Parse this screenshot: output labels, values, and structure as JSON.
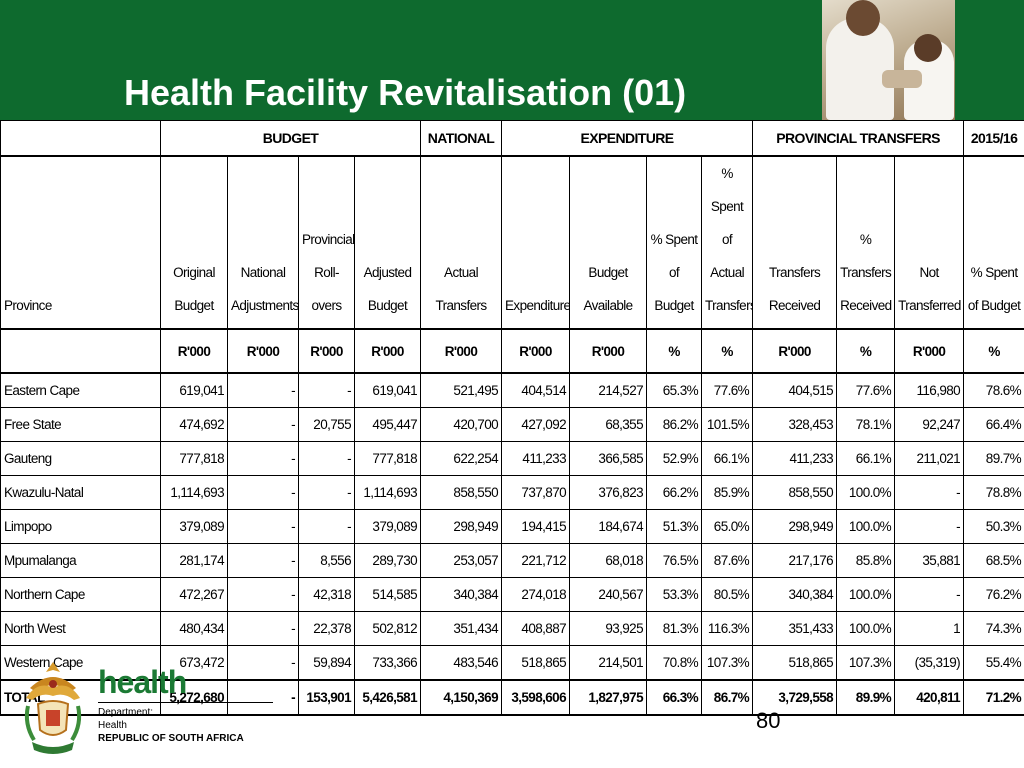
{
  "title": "Health Facility Revitalisation (01)",
  "colors": {
    "header_bg": "#0e6a2e",
    "brand_green": "#1b7a34"
  },
  "table": {
    "group_headers": [
      "BUDGET",
      "NATIONAL",
      "EXPENDITURE",
      "PROVINCIAL TRANSFERS",
      "2015/16"
    ],
    "columns": [
      {
        "label": "Province",
        "unit": ""
      },
      {
        "label": "Original Budget",
        "unit": "R'000"
      },
      {
        "label": "National Adjustments",
        "unit": "R'000"
      },
      {
        "label": "Provincial Roll-overs",
        "unit": "R'000"
      },
      {
        "label": "Adjusted Budget",
        "unit": "R'000"
      },
      {
        "label": "Actual Transfers",
        "unit": "R'000"
      },
      {
        "label": "Expenditure",
        "unit": "R'000"
      },
      {
        "label": "Budget Available",
        "unit": "R'000"
      },
      {
        "label": "% Spent of Budget",
        "unit": "%"
      },
      {
        "label": "% Spent of Actual Transfers",
        "unit": "%"
      },
      {
        "label": "Transfers Received",
        "unit": "R'000"
      },
      {
        "label": "% Transfers Received",
        "unit": "%"
      },
      {
        "label": "Not Transferred",
        "unit": "R'000"
      },
      {
        "label": "% Spent of Budget",
        "unit": "%"
      }
    ],
    "rows": [
      [
        "Eastern Cape",
        "619,041",
        "-",
        "-",
        "619,041",
        "521,495",
        "404,514",
        "214,527",
        "65.3%",
        "77.6%",
        "404,515",
        "77.6%",
        "116,980",
        "78.6%"
      ],
      [
        "Free State",
        "474,692",
        "-",
        "20,755",
        "495,447",
        "420,700",
        "427,092",
        "68,355",
        "86.2%",
        "101.5%",
        "328,453",
        "78.1%",
        "92,247",
        "66.4%"
      ],
      [
        "Gauteng",
        "777,818",
        "-",
        "-",
        "777,818",
        "622,254",
        "411,233",
        "366,585",
        "52.9%",
        "66.1%",
        "411,233",
        "66.1%",
        "211,021",
        "89.7%"
      ],
      [
        "Kwazulu-Natal",
        "1,114,693",
        "-",
        "-",
        "1,114,693",
        "858,550",
        "737,870",
        "376,823",
        "66.2%",
        "85.9%",
        "858,550",
        "100.0%",
        "-",
        "78.8%"
      ],
      [
        "Limpopo",
        "379,089",
        "-",
        "-",
        "379,089",
        "298,949",
        "194,415",
        "184,674",
        "51.3%",
        "65.0%",
        "298,949",
        "100.0%",
        "-",
        "50.3%"
      ],
      [
        "Mpumalanga",
        "281,174",
        "-",
        "8,556",
        "289,730",
        "253,057",
        "221,712",
        "68,018",
        "76.5%",
        "87.6%",
        "217,176",
        "85.8%",
        "35,881",
        "68.5%"
      ],
      [
        "Northern Cape",
        "472,267",
        "-",
        "42,318",
        "514,585",
        "340,384",
        "274,018",
        "240,567",
        "53.3%",
        "80.5%",
        "340,384",
        "100.0%",
        "-",
        "76.2%"
      ],
      [
        "North West",
        "480,434",
        "-",
        "22,378",
        "502,812",
        "351,434",
        "408,887",
        "93,925",
        "81.3%",
        "116.3%",
        "351,433",
        "100.0%",
        "1",
        "74.3%"
      ],
      [
        "Western Cape",
        "673,472",
        "-",
        "59,894",
        "733,366",
        "483,546",
        "518,865",
        "214,501",
        "70.8%",
        "107.3%",
        "518,865",
        "107.3%",
        "(35,319)",
        "55.4%"
      ]
    ],
    "total": [
      "TOTAL",
      "5,272,680",
      "-",
      "153,901",
      "5,426,581",
      "4,150,369",
      "3,598,606",
      "1,827,975",
      "66.3%",
      "86.7%",
      "3,729,558",
      "89.9%",
      "420,811",
      "71.2%"
    ]
  },
  "footer": {
    "brand": "health",
    "dept_line1": "Department:",
    "dept_line2": "Health",
    "dept_line3": "REPUBLIC OF SOUTH AFRICA",
    "page_number": "80"
  }
}
